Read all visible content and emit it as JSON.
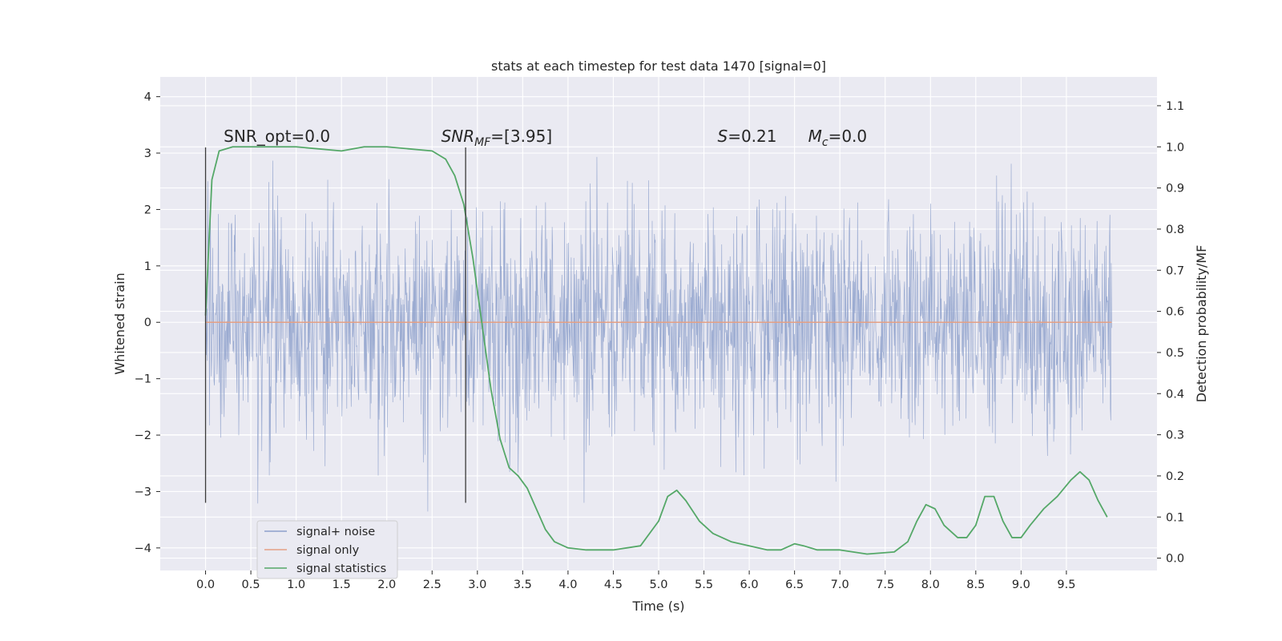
{
  "chart_data": {
    "type": "line",
    "title": "stats at each timestep for test data 1470 [signal=0]",
    "xlabel": "Time (s)",
    "ylabel": "Whitened strain",
    "ylabel_right": "Detection probability/MF",
    "xlim": [
      -0.5,
      10.5
    ],
    "ylim": [
      -4.4,
      4.35
    ],
    "ylim_right": [
      -0.03,
      1.17
    ],
    "x_ticks": [
      0.0,
      0.5,
      1.0,
      1.5,
      2.0,
      2.5,
      3.0,
      3.5,
      4.0,
      4.5,
      5.0,
      5.5,
      6.0,
      6.5,
      7.0,
      7.5,
      8.0,
      8.5,
      9.0,
      9.5
    ],
    "x_tick_labels": [
      "0.0",
      "0.5",
      "1.0",
      "1.5",
      "2.0",
      "2.5",
      "3.0",
      "3.5",
      "4.0",
      "4.5",
      "5.0",
      "5.5",
      "6.0",
      "6.5",
      "7.0",
      "7.5",
      "8.0",
      "8.5",
      "9.0",
      "9.5"
    ],
    "y_ticks": [
      -4,
      -3,
      -2,
      -1,
      0,
      1,
      2,
      3,
      4
    ],
    "y_tick_labels": [
      "−4",
      "−3",
      "−2",
      "−1",
      "0",
      "1",
      "2",
      "3",
      "4"
    ],
    "y_right_ticks": [
      0.0,
      0.1,
      0.2,
      0.3,
      0.4,
      0.5,
      0.6,
      0.7,
      0.8,
      0.9,
      1.0,
      1.1
    ],
    "y_right_tick_labels": [
      "0.0",
      "0.1",
      "0.2",
      "0.3",
      "0.4",
      "0.5",
      "0.6",
      "0.7",
      "0.8",
      "0.9",
      "1.0",
      "1.1"
    ],
    "grid": true,
    "legend_position": "lower-left",
    "annotations": [
      {
        "text": "SNR_opt=0.0",
        "x": 0.2,
        "y": 3.2
      },
      {
        "text": "SNR_MF=[3.95]",
        "x": 2.6,
        "y": 3.2
      },
      {
        "text": "S=0.21",
        "x": 5.65,
        "y": 3.2
      },
      {
        "text": "M_c=0.0",
        "x": 6.65,
        "y": 3.2
      }
    ],
    "vlines": [
      {
        "x": 0.0,
        "ymin": -3.2,
        "ymax": 3.1
      },
      {
        "x": 2.87,
        "ymin": -3.2,
        "ymax": 3.1
      }
    ],
    "series": [
      {
        "name": "signal+ noise",
        "axis": "left",
        "color": "#8da0cb",
        "kind": "noise",
        "x_range": [
          0.0,
          10.0
        ],
        "sigma": 1.0,
        "amplitude_range": [
          -4.1,
          4.0
        ]
      },
      {
        "name": "signal only",
        "axis": "left",
        "color": "#e5a084",
        "x": [
          0.0,
          10.0
        ],
        "values": [
          0.0,
          0.0
        ]
      },
      {
        "name": "signal statistics",
        "axis": "right",
        "color": "#55a868",
        "x": [
          0.0,
          0.07,
          0.15,
          0.3,
          0.5,
          1.0,
          1.5,
          1.75,
          2.0,
          2.5,
          2.65,
          2.75,
          2.85,
          2.95,
          3.05,
          3.15,
          3.25,
          3.35,
          3.45,
          3.55,
          3.65,
          3.75,
          3.85,
          4.0,
          4.2,
          4.5,
          4.8,
          5.0,
          5.1,
          5.2,
          5.3,
          5.45,
          5.6,
          5.8,
          6.0,
          6.2,
          6.35,
          6.5,
          6.6,
          6.75,
          7.0,
          7.3,
          7.6,
          7.75,
          7.85,
          7.95,
          8.05,
          8.15,
          8.3,
          8.4,
          8.5,
          8.6,
          8.7,
          8.8,
          8.9,
          9.0,
          9.1,
          9.25,
          9.4,
          9.55,
          9.65,
          9.75,
          9.85,
          9.95
        ],
        "values": [
          0.59,
          0.92,
          0.99,
          1.0,
          1.0,
          1.0,
          0.99,
          1.0,
          1.0,
          0.99,
          0.97,
          0.93,
          0.86,
          0.73,
          0.57,
          0.41,
          0.29,
          0.22,
          0.2,
          0.17,
          0.12,
          0.07,
          0.04,
          0.025,
          0.02,
          0.02,
          0.03,
          0.09,
          0.15,
          0.165,
          0.14,
          0.09,
          0.06,
          0.04,
          0.03,
          0.02,
          0.02,
          0.035,
          0.03,
          0.02,
          0.02,
          0.01,
          0.015,
          0.04,
          0.09,
          0.13,
          0.12,
          0.08,
          0.05,
          0.05,
          0.08,
          0.15,
          0.15,
          0.09,
          0.05,
          0.05,
          0.08,
          0.12,
          0.15,
          0.19,
          0.21,
          0.19,
          0.14,
          0.1
        ]
      }
    ]
  }
}
